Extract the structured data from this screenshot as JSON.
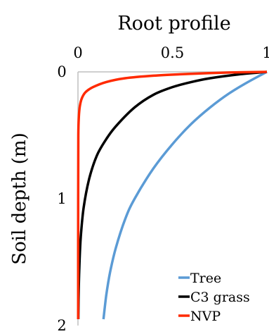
{
  "chart_data": {
    "type": "line",
    "title": "Root profile",
    "xlabel": "",
    "ylabel": "Soil depth (m)",
    "xlim": [
      0,
      1
    ],
    "ylim": [
      0,
      2
    ],
    "y_inverted": true,
    "x_axis_position": "top",
    "x_ticks": [
      "0",
      "0.5",
      "1"
    ],
    "y_ticks": [
      "0",
      "1",
      "2"
    ],
    "grid": false,
    "legend_position": "bottom-right",
    "series": [
      {
        "name": "Tree",
        "color": "#5b9bd5",
        "points": [
          [
            1.0,
            0.0
          ],
          [
            0.9,
            0.08
          ],
          [
            0.8,
            0.17
          ],
          [
            0.7,
            0.28
          ],
          [
            0.6,
            0.41
          ],
          [
            0.5,
            0.57
          ],
          [
            0.4,
            0.76
          ],
          [
            0.3,
            1.0
          ],
          [
            0.25,
            1.16
          ],
          [
            0.2,
            1.39
          ],
          [
            0.17,
            1.58
          ],
          [
            0.15,
            1.76
          ],
          [
            0.135,
            1.95
          ]
        ]
      },
      {
        "name": "C3 grass",
        "color": "#000000",
        "points": [
          [
            1.0,
            0.0
          ],
          [
            0.85,
            0.02
          ],
          [
            0.7,
            0.05
          ],
          [
            0.6,
            0.08
          ],
          [
            0.5,
            0.12
          ],
          [
            0.4,
            0.18
          ],
          [
            0.3,
            0.28
          ],
          [
            0.2,
            0.43
          ],
          [
            0.15,
            0.53
          ],
          [
            0.1,
            0.66
          ],
          [
            0.06,
            0.84
          ],
          [
            0.03,
            1.07
          ],
          [
            0.015,
            1.3
          ],
          [
            0.007,
            1.55
          ],
          [
            0.003,
            1.8
          ],
          [
            0.002,
            1.95
          ]
        ]
      },
      {
        "name": "NVP",
        "color": "#ff2a00",
        "points": [
          [
            1.0,
            0.0
          ],
          [
            0.8,
            0.005
          ],
          [
            0.6,
            0.015
          ],
          [
            0.4,
            0.03
          ],
          [
            0.25,
            0.05
          ],
          [
            0.15,
            0.08
          ],
          [
            0.08,
            0.12
          ],
          [
            0.04,
            0.16
          ],
          [
            0.02,
            0.21
          ],
          [
            0.01,
            0.27
          ],
          [
            0.005,
            0.35
          ],
          [
            0.002,
            0.5
          ],
          [
            0.001,
            1.0
          ],
          [
            0.001,
            1.95
          ]
        ]
      }
    ]
  }
}
